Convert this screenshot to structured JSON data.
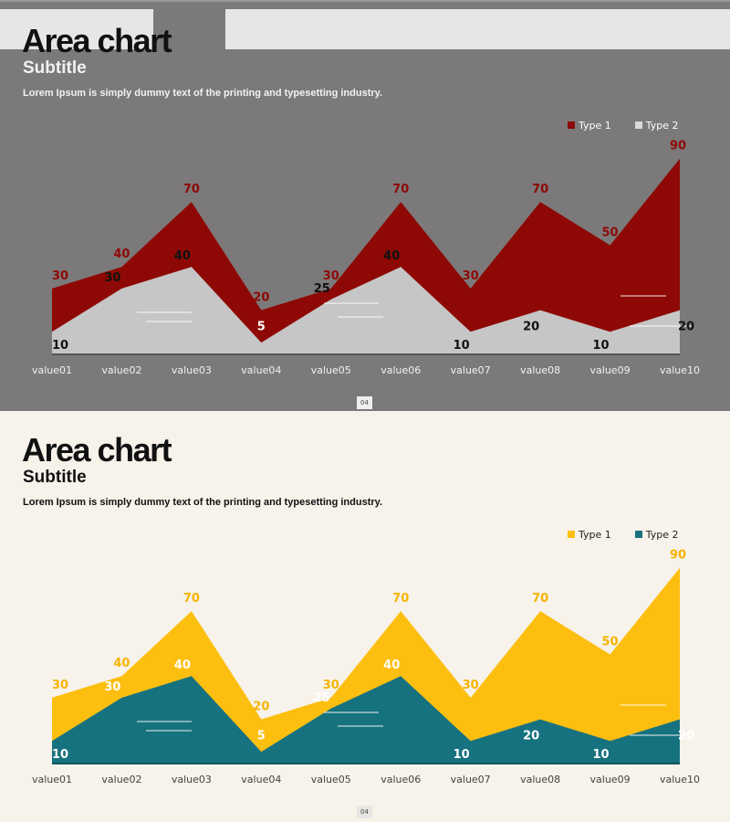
{
  "slides": [
    {
      "title": "Area chart",
      "subtitle": "Subtitle",
      "description": "Lorem Ipsum is simply dummy text of the printing and typesetting industry.",
      "page_number": "04",
      "colors": {
        "background": "#7b797a",
        "type1": "#8e0905",
        "type2": "#c6c6c6",
        "type1_label": "#8e0905",
        "type2_label": "#111111",
        "axis_label": "#f2f2f2"
      }
    },
    {
      "title": "Area chart",
      "subtitle": "Subtitle",
      "description": "Lorem Ipsum is simply dummy text of the printing and typesetting industry.",
      "page_number": "04",
      "colors": {
        "background": "#f7f2ea",
        "type1": "#fdbf0f",
        "type2": "#17727f",
        "type1_label": "#f5b400",
        "type2_label": "#ffffff",
        "axis_label": "#444444"
      }
    }
  ],
  "chart_data": [
    {
      "type": "area",
      "title": "Area chart",
      "subtitle": "Subtitle",
      "categories": [
        "value01",
        "value02",
        "value03",
        "value04",
        "value05",
        "value06",
        "value07",
        "value08",
        "value09",
        "value10"
      ],
      "series": [
        {
          "name": "Type 1",
          "values": [
            30,
            40,
            70,
            20,
            30,
            70,
            30,
            70,
            50,
            90
          ]
        },
        {
          "name": "Type 2",
          "values": [
            10,
            30,
            40,
            5,
            25,
            40,
            10,
            20,
            10,
            20
          ]
        }
      ],
      "ylim": [
        0,
        90
      ],
      "grid": false,
      "legend": "top-right",
      "data_labels": true
    },
    {
      "type": "area",
      "title": "Area chart",
      "subtitle": "Subtitle",
      "categories": [
        "value01",
        "value02",
        "value03",
        "value04",
        "value05",
        "value06",
        "value07",
        "value08",
        "value09",
        "value10"
      ],
      "series": [
        {
          "name": "Type 1",
          "values": [
            30,
            40,
            70,
            20,
            30,
            70,
            30,
            70,
            50,
            90
          ]
        },
        {
          "name": "Type 2",
          "values": [
            10,
            30,
            40,
            5,
            25,
            40,
            10,
            20,
            10,
            20
          ]
        }
      ],
      "ylim": [
        0,
        90
      ],
      "grid": false,
      "legend": "top-right",
      "data_labels": true
    }
  ]
}
